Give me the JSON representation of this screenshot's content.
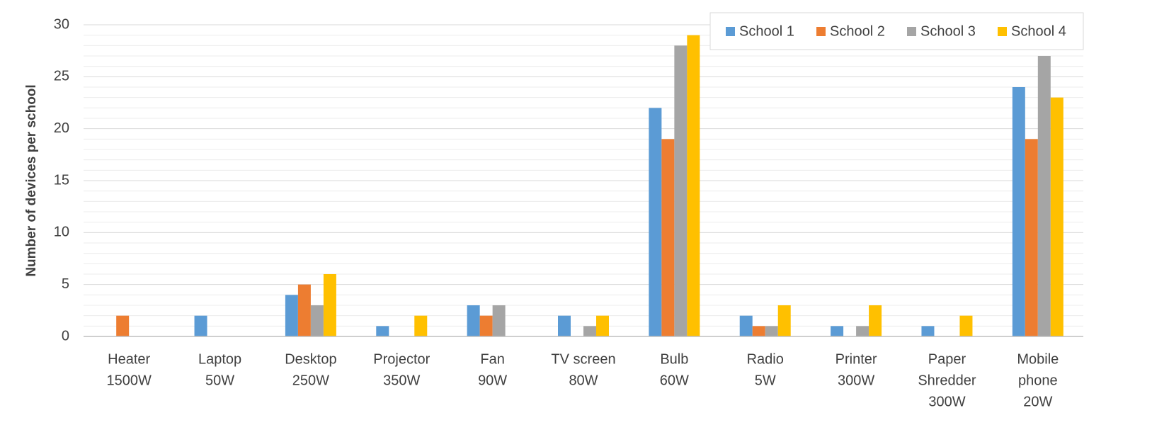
{
  "chart_data": {
    "type": "bar",
    "y_label": "Number of devices per school",
    "categories": [
      [
        "Heater",
        "1500W"
      ],
      [
        "Laptop",
        "50W"
      ],
      [
        "Desktop",
        "250W"
      ],
      [
        "Projector",
        "350W"
      ],
      [
        "Fan",
        "90W"
      ],
      [
        "TV screen",
        "80W"
      ],
      [
        "Bulb",
        "60W"
      ],
      [
        "Radio",
        "5W"
      ],
      [
        "Printer",
        "300W"
      ],
      [
        "Paper",
        "Shredder",
        "300W"
      ],
      [
        "Mobile",
        "phone",
        "20W"
      ]
    ],
    "series": [
      {
        "name": "School 1",
        "color": "#5b9bd5",
        "values": [
          0,
          2,
          4,
          1,
          3,
          2,
          22,
          2,
          1,
          1,
          24
        ]
      },
      {
        "name": "School 2",
        "color": "#ed7d31",
        "values": [
          2,
          0,
          5,
          0,
          2,
          0,
          19,
          1,
          0,
          0,
          19
        ]
      },
      {
        "name": "School 3",
        "color": "#a5a5a5",
        "values": [
          0,
          0,
          3,
          0,
          3,
          1,
          28,
          1,
          1,
          0,
          27
        ]
      },
      {
        "name": "School 4",
        "color": "#ffc000",
        "values": [
          0,
          0,
          6,
          2,
          0,
          2,
          29,
          3,
          3,
          2,
          23
        ]
      }
    ],
    "ylim": [
      0,
      30
    ],
    "yticks": [
      0,
      5,
      10,
      15,
      20,
      25,
      30
    ],
    "minor_yticks": [
      1,
      2,
      3,
      4,
      6,
      7,
      8,
      9,
      11,
      12,
      13,
      14,
      16,
      17,
      18,
      19,
      21,
      22,
      23,
      24,
      26,
      27,
      28,
      29
    ],
    "grid": true,
    "legend": "top-right"
  }
}
